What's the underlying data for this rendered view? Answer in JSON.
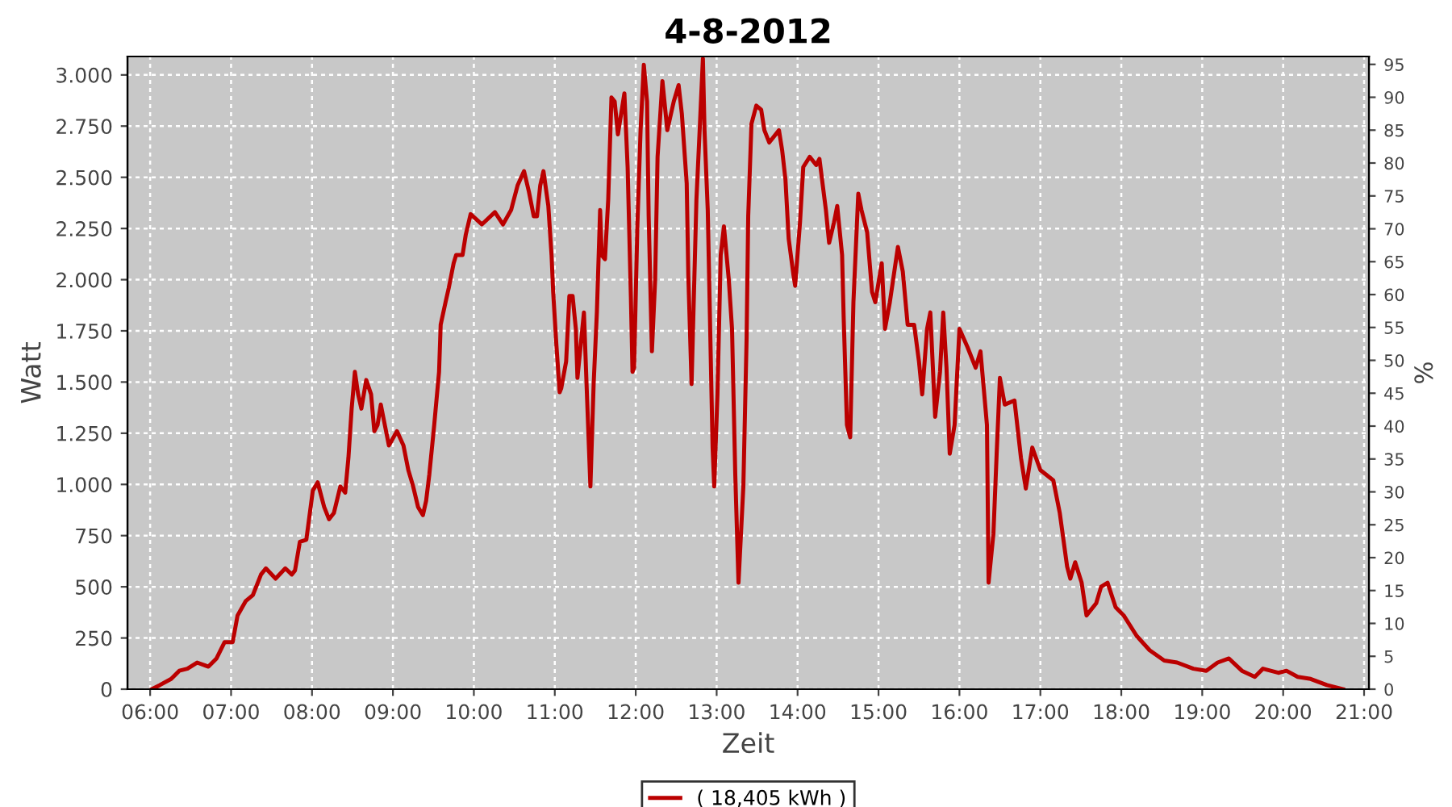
{
  "chart_data": {
    "type": "line",
    "title": "4-8-2012",
    "xlabel": "Zeit",
    "ylabel": "Watt",
    "y2label": "%",
    "x": [
      6.02,
      6.12,
      6.26,
      6.36,
      6.46,
      6.58,
      6.72,
      6.82,
      6.92,
      7.02,
      7.08,
      7.18,
      7.27,
      7.37,
      7.43,
      7.55,
      7.67,
      7.75,
      7.79,
      7.85,
      7.93,
      8.01,
      8.07,
      8.15,
      8.21,
      8.27,
      8.35,
      8.41,
      8.45,
      8.49,
      8.53,
      8.57,
      8.61,
      8.67,
      8.73,
      8.77,
      8.81,
      8.85,
      8.89,
      8.95,
      9.05,
      9.13,
      9.19,
      9.25,
      9.31,
      9.37,
      9.41,
      9.45,
      9.51,
      9.57,
      9.59,
      9.65,
      9.69,
      9.75,
      9.78,
      9.86,
      9.9,
      9.96,
      10.1,
      10.26,
      10.36,
      10.46,
      10.54,
      10.62,
      10.68,
      10.74,
      10.78,
      10.82,
      10.86,
      10.92,
      10.96,
      10.98,
      11.02,
      11.06,
      11.08,
      11.14,
      11.18,
      11.22,
      11.26,
      11.28,
      11.34,
      11.36,
      11.4,
      11.44,
      11.48,
      11.52,
      11.56,
      11.58,
      11.62,
      11.66,
      11.7,
      11.74,
      11.78,
      11.86,
      11.9,
      11.94,
      11.96,
      11.98,
      12.02,
      12.06,
      12.1,
      12.14,
      12.16,
      12.2,
      12.24,
      12.27,
      12.33,
      12.39,
      12.47,
      12.53,
      12.57,
      12.63,
      12.65,
      12.69,
      12.75,
      12.79,
      12.83,
      12.85,
      12.89,
      12.95,
      12.97,
      13.01,
      13.05,
      13.09,
      13.15,
      13.19,
      13.23,
      13.27,
      13.33,
      13.37,
      13.39,
      13.43,
      13.49,
      13.55,
      13.59,
      13.65,
      13.77,
      13.81,
      13.85,
      13.89,
      13.95,
      13.97,
      14.03,
      14.07,
      14.15,
      14.23,
      14.27,
      14.35,
      14.39,
      14.45,
      14.49,
      14.55,
      14.57,
      14.61,
      14.65,
      14.69,
      14.75,
      14.79,
      14.86,
      14.92,
      14.96,
      15.04,
      15.08,
      15.14,
      15.24,
      15.3,
      15.36,
      15.44,
      15.5,
      15.54,
      15.6,
      15.64,
      15.7,
      15.76,
      15.8,
      15.84,
      15.88,
      15.94,
      16.0,
      16.1,
      16.2,
      16.26,
      16.34,
      16.36,
      16.42,
      16.46,
      16.5,
      16.56,
      16.68,
      16.76,
      16.82,
      16.9,
      17.0,
      17.16,
      17.24,
      17.33,
      17.37,
      17.43,
      17.51,
      17.57,
      17.69,
      17.75,
      17.83,
      17.93,
      18.03,
      18.19,
      18.35,
      18.53,
      18.69,
      18.89,
      19.05,
      19.19,
      19.33,
      19.49,
      19.65,
      19.75,
      19.94,
      20.04,
      20.18,
      20.34,
      20.54,
      20.74
    ],
    "series": [
      {
        "name": "( 18,405 kWh )",
        "color": "#bb0000",
        "values": [
          0,
          20,
          50,
          90,
          100,
          130,
          110,
          150,
          230,
          230,
          360,
          430,
          460,
          560,
          590,
          540,
          590,
          560,
          580,
          720,
          730,
          970,
          1010,
          890,
          830,
          860,
          990,
          960,
          1130,
          1370,
          1550,
          1440,
          1370,
          1510,
          1440,
          1260,
          1290,
          1390,
          1310,
          1190,
          1260,
          1190,
          1070,
          990,
          890,
          850,
          920,
          1050,
          1290,
          1550,
          1780,
          1890,
          1960,
          2080,
          2120,
          2120,
          2220,
          2320,
          2270,
          2330,
          2270,
          2340,
          2460,
          2530,
          2430,
          2310,
          2310,
          2460,
          2530,
          2360,
          2120,
          1940,
          1680,
          1450,
          1470,
          1600,
          1920,
          1920,
          1760,
          1520,
          1760,
          1840,
          1410,
          990,
          1490,
          1840,
          2340,
          2120,
          2100,
          2390,
          2890,
          2870,
          2710,
          2910,
          2550,
          1920,
          1550,
          1570,
          2260,
          2730,
          3050,
          2870,
          2310,
          1650,
          2000,
          2600,
          2970,
          2730,
          2870,
          2950,
          2810,
          2470,
          2020,
          1490,
          2390,
          2730,
          3080,
          2730,
          2340,
          1180,
          990,
          1440,
          2120,
          2260,
          2000,
          1760,
          1050,
          520,
          990,
          1710,
          2310,
          2760,
          2850,
          2830,
          2730,
          2670,
          2730,
          2630,
          2490,
          2200,
          2020,
          1970,
          2280,
          2550,
          2600,
          2560,
          2590,
          2340,
          2180,
          2280,
          2360,
          2120,
          1810,
          1290,
          1230,
          1890,
          2420,
          2340,
          2230,
          1940,
          1890,
          2080,
          1760,
          1890,
          2160,
          2040,
          1780,
          1780,
          1600,
          1440,
          1760,
          1840,
          1330,
          1550,
          1840,
          1570,
          1150,
          1290,
          1760,
          1670,
          1570,
          1650,
          1290,
          520,
          760,
          1150,
          1520,
          1390,
          1410,
          1130,
          980,
          1180,
          1070,
          1020,
          860,
          600,
          540,
          620,
          520,
          360,
          420,
          500,
          520,
          400,
          360,
          260,
          190,
          140,
          130,
          100,
          90,
          130,
          150,
          90,
          60,
          100,
          80,
          90,
          60,
          50,
          20,
          0
        ]
      }
    ],
    "xlim": [
      5.72,
      21.06
    ],
    "xticks": [
      {
        "value": 6,
        "label": "06:00"
      },
      {
        "value": 7,
        "label": "07:00"
      },
      {
        "value": 8,
        "label": "08:00"
      },
      {
        "value": 9,
        "label": "09:00"
      },
      {
        "value": 10,
        "label": "10:00"
      },
      {
        "value": 11,
        "label": "11:00"
      },
      {
        "value": 12,
        "label": "12:00"
      },
      {
        "value": 13,
        "label": "13:00"
      },
      {
        "value": 14,
        "label": "14:00"
      },
      {
        "value": 15,
        "label": "15:00"
      },
      {
        "value": 16,
        "label": "16:00"
      },
      {
        "value": 17,
        "label": "17:00"
      },
      {
        "value": 18,
        "label": "18:00"
      },
      {
        "value": 19,
        "label": "19:00"
      },
      {
        "value": 20,
        "label": "20:00"
      },
      {
        "value": 21,
        "label": "21:00"
      }
    ],
    "ylim": [
      0,
      3090
    ],
    "yticks": [
      0,
      250,
      500,
      750,
      {
        "value": 1000,
        "label": "1.000"
      },
      {
        "value": 1250,
        "label": "1.250"
      },
      {
        "value": 1500,
        "label": "1.500"
      },
      {
        "value": 1750,
        "label": "1.750"
      },
      {
        "value": 2000,
        "label": "2.000"
      },
      {
        "value": 2250,
        "label": "2.250"
      },
      {
        "value": 2500,
        "label": "2.500"
      },
      {
        "value": 2750,
        "label": "2.750"
      },
      {
        "value": 3000,
        "label": "3.000"
      }
    ],
    "y2lim": [
      0,
      96.2
    ],
    "y2ticks": [
      0,
      5,
      10,
      15,
      20,
      25,
      30,
      35,
      40,
      45,
      50,
      55,
      60,
      65,
      70,
      75,
      80,
      85,
      90,
      95
    ],
    "grid": true,
    "legend": "bottom",
    "marker": "none",
    "line_style": "solid"
  }
}
